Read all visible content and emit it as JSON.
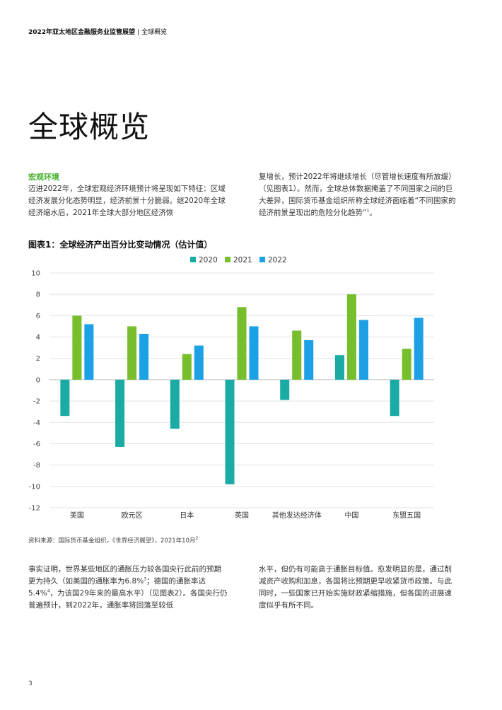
{
  "header": {
    "report_title": "2022年亚太地区金融服务业监管展望",
    "separator": "|",
    "section": "全球概览"
  },
  "page_title": "全球概览",
  "section_heading": "宏观环境",
  "intro_left": "迈进2022年，全球宏观经济环境预计将呈现如下特征：区域经济发展分化态势明显，经济前景十分脆弱。继2020年全球经济缩水后，2021年全球大部分地区经济恢",
  "intro_right": "复增长，预计2022年将继续增长（尽管增长速度有所放缓）（见图表1）。然而，全球总体数据掩盖了不同国家之间的巨大差异，国际货币基金组织所称全球经济面临着“不同国家的经济前景呈现出的危险分化趋势”",
  "intro_right_sup": "1",
  "intro_right_end": "。",
  "chart_title": "图表1：全球经济产出百分比变动情况（估计值）",
  "source": {
    "text": "资料来源：国际货币基金组织，《世界经济展望》，2021年10月",
    "sup": "2"
  },
  "body_left": {
    "p1": "事实证明，世界某些地区的通胀压力较各国央行此前的预期更为持久（如美国的通胀率为6.8%",
    "sup1": "3",
    "p2": "；德国的通胀率达5.4%",
    "sup2": "4",
    "p3": "，为该国29年来的最高水平）（见图表2）。各国央行仍普遍预计，到2022年，通胀率将回落至较低"
  },
  "body_right": "水平，但仍有可能高于通胀目标值。愈发明显的是，通过削减资产收购和加息，各国将比预期更早收紧货币政策。与此同时，一些国家已开始实施财政紧缩措施，但各国的进展速度似乎有所不同。",
  "page_number": "3",
  "chart_data": {
    "type": "bar",
    "title": "图表1：全球经济产出百分比变动情况（估计值）",
    "xlabel": "",
    "ylabel": "",
    "categories": [
      "美国",
      "欧元区",
      "日本",
      "英国",
      "其他发达经济体",
      "中国",
      "东盟五国"
    ],
    "series": [
      {
        "name": "2020",
        "color": "#1aaba4",
        "values": [
          -3.4,
          -6.3,
          -4.6,
          -9.8,
          -1.9,
          2.3,
          -3.4
        ]
      },
      {
        "name": "2021",
        "color": "#76be2b",
        "values": [
          6.0,
          5.0,
          2.4,
          6.8,
          4.6,
          8.0,
          2.9
        ]
      },
      {
        "name": "2022",
        "color": "#1ca0e6",
        "values": [
          5.2,
          4.3,
          3.2,
          5.0,
          3.7,
          5.6,
          5.8
        ]
      }
    ],
    "ylim": [
      -12,
      10
    ],
    "yticks": [
      "10",
      "8",
      "6",
      "4",
      "2",
      "0",
      "-2",
      "-4",
      "-6",
      "-8",
      "-10",
      "-12"
    ],
    "grid": true,
    "legend": "top-center"
  }
}
